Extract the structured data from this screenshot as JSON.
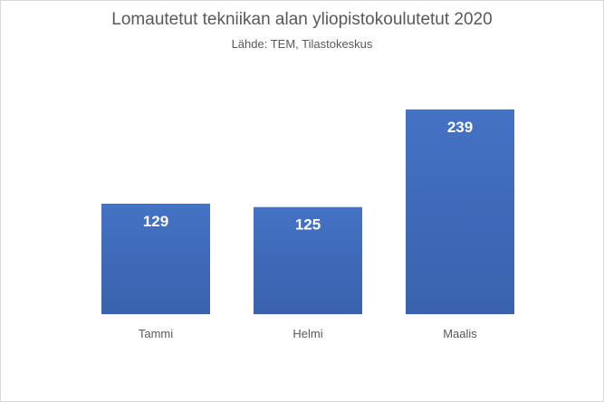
{
  "chart_data": {
    "type": "bar",
    "title": "Lomautetut tekniikan alan yliopistokoulutetut 2020",
    "subtitle": "Lähde: TEM, Tilastokeskus",
    "categories": [
      "Tammi",
      "Helmi",
      "Maalis"
    ],
    "values": [
      129,
      125,
      239
    ],
    "data_labels": [
      "129",
      "125",
      "239"
    ],
    "xlabel": "",
    "ylabel": "",
    "ylim": [
      0,
      260
    ],
    "grid": false,
    "legend": "none",
    "bar_color": "#4472c4",
    "bar_color_dark": "#3a62ae"
  }
}
